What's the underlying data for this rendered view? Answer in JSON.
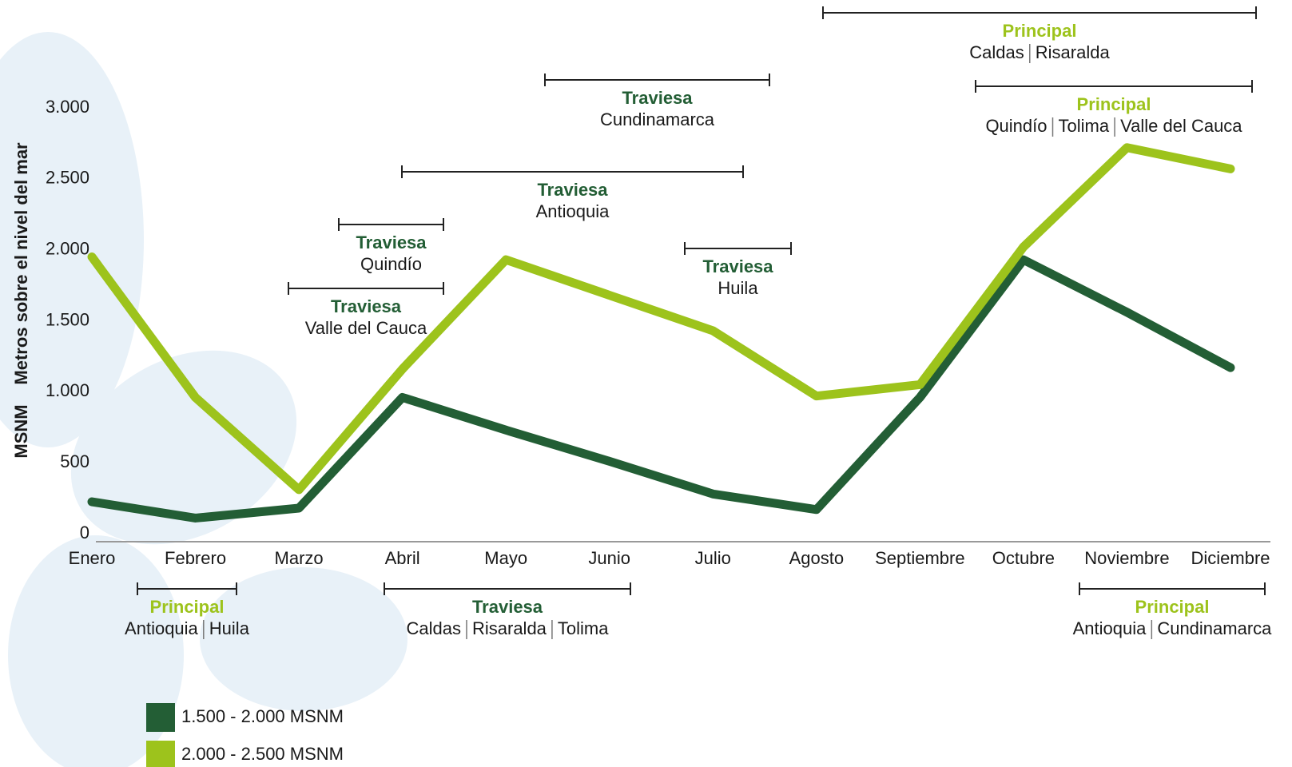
{
  "chart_data": {
    "type": "line",
    "y_label": "Metros sobre el nivel del mar",
    "y_unit_label": "MSNM",
    "categories": [
      "Enero",
      "Febrero",
      "Marzo",
      "Abril",
      "Mayo",
      "Junio",
      "Julio",
      "Agosto",
      "Septiembre",
      "Octubre",
      "Noviembre",
      "Diciembre"
    ],
    "series": [
      {
        "name": "1.500 - 2.000 MSNM",
        "color": "#235e35",
        "values": [
          225,
          110,
          180,
          960,
          730,
          510,
          280,
          170,
          960,
          1930,
          1560,
          1170
        ]
      },
      {
        "name": "2.000 - 2.500 MSNM",
        "color": "#9dc31c",
        "values": [
          1950,
          960,
          310,
          1160,
          1930,
          1680,
          1430,
          970,
          1050,
          2020,
          2720,
          2570
        ]
      }
    ],
    "ylim": [
      0,
      3000
    ],
    "yticks": [
      0,
      500,
      {
        "value": 1000,
        "label": "1.000"
      },
      {
        "value": 1500,
        "label": "1.500"
      },
      {
        "value": 2000,
        "label": "2.000"
      },
      {
        "value": 2500,
        "label": "2.500"
      },
      {
        "value": 3000,
        "label": "3.000"
      }
    ],
    "grid": false,
    "annotations": [
      {
        "title": "Principal",
        "regions": [
          "Caldas",
          "Risaralda"
        ]
      },
      {
        "title": "Traviesa",
        "regions": [
          "Cundinamarca"
        ]
      },
      {
        "title": "Principal",
        "regions": [
          "Quindío",
          "Tolima",
          "Valle del Cauca"
        ]
      },
      {
        "title": "Traviesa",
        "regions": [
          "Antioquia"
        ]
      },
      {
        "title": "Traviesa",
        "regions": [
          "Quindío"
        ]
      },
      {
        "title": "Traviesa",
        "regions": [
          "Huila"
        ]
      },
      {
        "title": "Traviesa",
        "regions": [
          "Valle del Cauca"
        ]
      },
      {
        "title": "Principal",
        "regions": [
          "Antioquia",
          "Huila"
        ]
      },
      {
        "title": "Traviesa",
        "regions": [
          "Caldas",
          "Risaralda",
          "Tolima"
        ]
      },
      {
        "title": "Principal",
        "regions": [
          "Antioquia",
          "Cundinamarca"
        ]
      }
    ]
  }
}
